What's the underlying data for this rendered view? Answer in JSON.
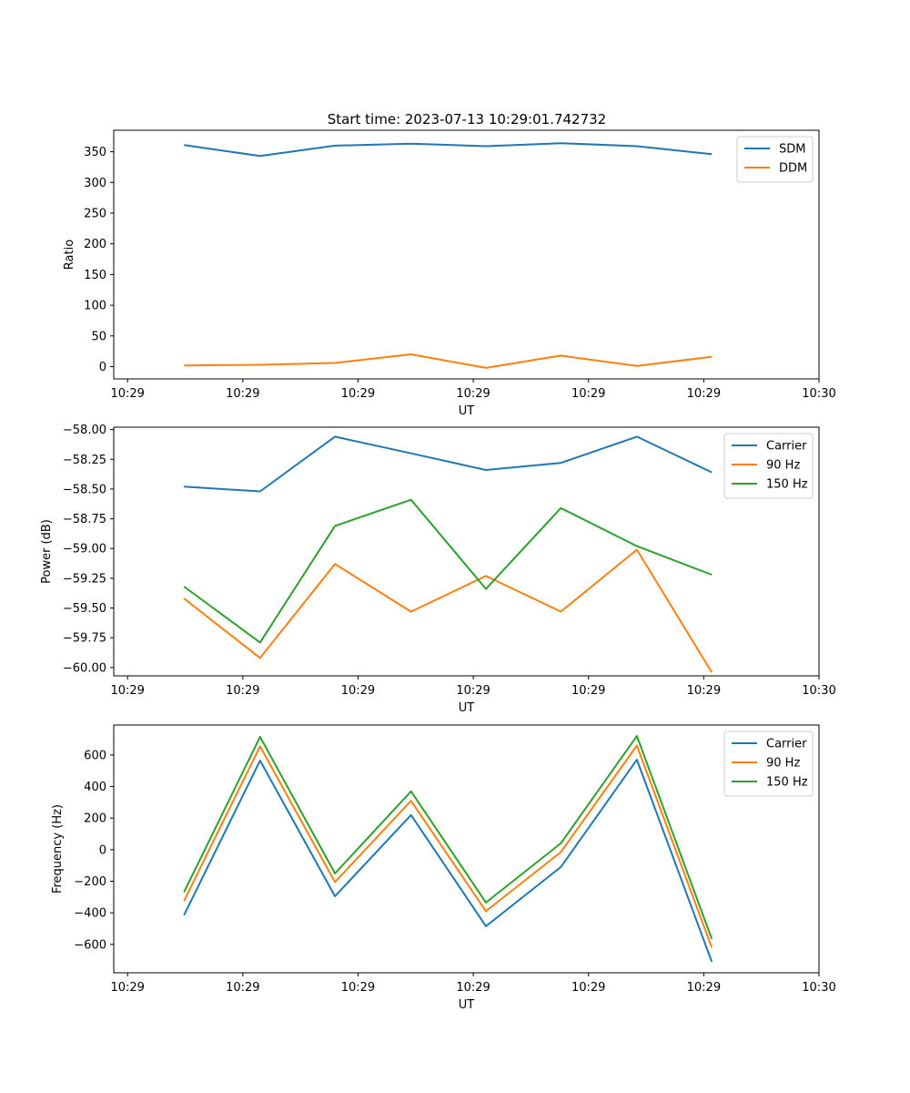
{
  "figure_title": "Start time: 2023-07-13 10:29:01.742732",
  "x_ticks": [
    {
      "pos": 0.0,
      "label": "10:29"
    },
    {
      "pos": 1.0,
      "label": "10:29"
    },
    {
      "pos": 2.0,
      "label": "10:29"
    },
    {
      "pos": 3.0,
      "label": "10:29"
    },
    {
      "pos": 4.0,
      "label": "10:29"
    },
    {
      "pos": 5.0,
      "label": "10:29"
    },
    {
      "pos": 6.0,
      "label": "10:30"
    }
  ],
  "colors": {
    "blue": "#1f77b4",
    "orange": "#ff7f0e",
    "green": "#2ca02c"
  },
  "chart_data": [
    {
      "type": "line",
      "title": "Start time: 2023-07-13 10:29:01.742732",
      "xlabel": "UT",
      "ylabel": "Ratio",
      "xlim": [
        -0.12,
        6.0
      ],
      "ylim": [
        -20,
        385
      ],
      "yticks": [
        {
          "v": 0,
          "label": "0"
        },
        {
          "v": 50,
          "label": "50"
        },
        {
          "v": 100,
          "label": "100"
        },
        {
          "v": 150,
          "label": "150"
        },
        {
          "v": 200,
          "label": "200"
        },
        {
          "v": 250,
          "label": "250"
        },
        {
          "v": 300,
          "label": "300"
        },
        {
          "v": 350,
          "label": "350"
        }
      ],
      "x": [
        0.49,
        1.15,
        1.8,
        2.46,
        3.11,
        3.76,
        4.42,
        5.07
      ],
      "legend": "top-right",
      "series": [
        {
          "name": "SDM",
          "color": "#1f77b4",
          "values": [
            361,
            343,
            360,
            363,
            359,
            364,
            359,
            346
          ]
        },
        {
          "name": "DDM",
          "color": "#ff7f0e",
          "values": [
            2,
            3,
            6,
            20,
            -2,
            18,
            1,
            16
          ]
        }
      ]
    },
    {
      "type": "line",
      "title": "",
      "xlabel": "UT",
      "ylabel": "Power (dB)",
      "xlim": [
        -0.12,
        6.0
      ],
      "ylim": [
        -60.07,
        -57.98
      ],
      "yticks": [
        {
          "v": -58.0,
          "label": "−58.00"
        },
        {
          "v": -58.25,
          "label": "−58.25"
        },
        {
          "v": -58.5,
          "label": "−58.50"
        },
        {
          "v": -58.75,
          "label": "−58.75"
        },
        {
          "v": -59.0,
          "label": "−59.00"
        },
        {
          "v": -59.25,
          "label": "−59.25"
        },
        {
          "v": -59.5,
          "label": "−59.50"
        },
        {
          "v": -59.75,
          "label": "−59.75"
        },
        {
          "v": -60.0,
          "label": "−60.00"
        }
      ],
      "x": [
        0.49,
        1.15,
        1.8,
        2.46,
        3.11,
        3.76,
        4.42,
        5.07
      ],
      "legend": "top-right",
      "series": [
        {
          "name": "Carrier",
          "color": "#1f77b4",
          "values": [
            -58.48,
            -58.52,
            -58.06,
            -58.2,
            -58.34,
            -58.28,
            -58.06,
            -58.36
          ]
        },
        {
          "name": "90 Hz",
          "color": "#ff7f0e",
          "values": [
            -59.42,
            -59.92,
            -59.13,
            -59.53,
            -59.23,
            -59.53,
            -59.01,
            -60.04
          ]
        },
        {
          "name": "150 Hz",
          "color": "#2ca02c",
          "values": [
            -59.32,
            -59.79,
            -58.81,
            -58.59,
            -59.34,
            -58.66,
            -58.98,
            -59.22
          ]
        }
      ]
    },
    {
      "type": "line",
      "title": "",
      "xlabel": "UT",
      "ylabel": "Frequency (Hz)",
      "xlim": [
        -0.12,
        6.0
      ],
      "ylim": [
        -780,
        790
      ],
      "yticks": [
        {
          "v": -600,
          "label": "−600"
        },
        {
          "v": -400,
          "label": "−400"
        },
        {
          "v": -200,
          "label": "−200"
        },
        {
          "v": 0,
          "label": "0"
        },
        {
          "v": 200,
          "label": "200"
        },
        {
          "v": 400,
          "label": "400"
        },
        {
          "v": 600,
          "label": "600"
        }
      ],
      "x": [
        0.49,
        1.15,
        1.8,
        2.46,
        3.11,
        3.76,
        4.42,
        5.07
      ],
      "legend": "top-right",
      "series": [
        {
          "name": "Carrier",
          "color": "#1f77b4",
          "values": [
            -415,
            565,
            -295,
            220,
            -485,
            -110,
            570,
            -710
          ]
        },
        {
          "name": "90 Hz",
          "color": "#ff7f0e",
          "values": [
            -325,
            655,
            -205,
            310,
            -390,
            -15,
            660,
            -620
          ]
        },
        {
          "name": "150 Hz",
          "color": "#2ca02c",
          "values": [
            -270,
            715,
            -150,
            370,
            -335,
            40,
            720,
            -565
          ]
        }
      ]
    }
  ]
}
